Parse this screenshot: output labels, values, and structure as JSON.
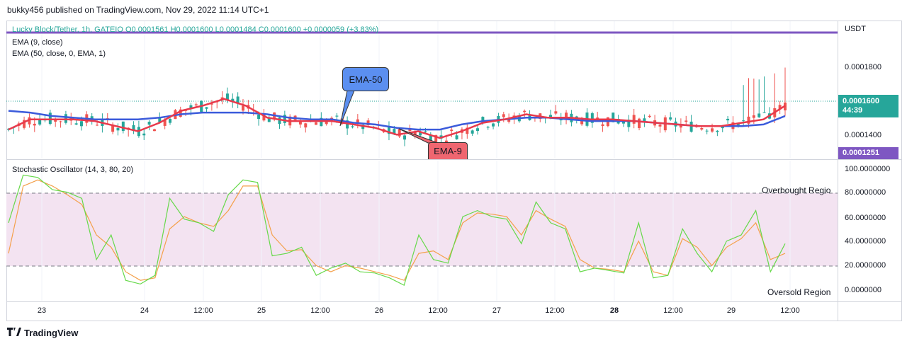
{
  "header": {
    "text": "bukky456 published on TradingView.com, Nov 29, 2022 11:14 UTC+1"
  },
  "legend": {
    "ohlc": "Lucky Block/Tether, 1h, GATEIO  O0.0001561  H0.0001600  L0.0001484  C0.0001600  +0.0000059 (+3.83%)",
    "ema9": "EMA (9, close)",
    "ema50": "EMA (50, close, 0, EMA, 1)",
    "stoch": "Stochastic Oscillator (14, 3, 80, 20)"
  },
  "price_axis": {
    "currency": "USDT",
    "labels": [
      "0.0001800",
      "0.0001400"
    ],
    "current_price": "0.0001600",
    "countdown": "44:39",
    "low_marker": "0.0001251"
  },
  "osc_axis": {
    "labels": [
      "100.0000000",
      "80.0000000",
      "60.0000000",
      "40.0000000",
      "20.0000000",
      "0.0000000"
    ]
  },
  "annotations": {
    "ema50": "EMA-50",
    "ema9": "EMA-9",
    "overbought": "Overbought Regio",
    "oversold": "Oversold Region"
  },
  "time_axis": [
    "23",
    "24",
    "12:00",
    "25",
    "12:00",
    "26",
    "12:00",
    "27",
    "12:00",
    "28",
    "12:00",
    "29",
    "12:00"
  ],
  "branding": {
    "name": "TradingView"
  },
  "colors": {
    "up": "#26a69a",
    "down": "#ef5350",
    "ema9": "#e8394b",
    "ema50": "#3b5bdb",
    "stochK": "#66d94a",
    "stochD": "#f4a04a",
    "band": "#f3e3f1",
    "hline": "#7e57c2"
  },
  "chart_data": [
    {
      "type": "candlestick",
      "title": "Lucky Block/Tether, 1h, GATEIO",
      "ylabel": "USDT",
      "ylim": [
        0.000123,
        0.000196
      ],
      "x_ticks": [
        "23",
        "24",
        "12:00",
        "25",
        "12:00",
        "26",
        "12:00",
        "27",
        "12:00",
        "28",
        "12:00",
        "29",
        "12:00"
      ],
      "y_ticks": [
        0.00018,
        0.00014
      ],
      "last_close": 0.00016,
      "horizontal_line": 0.000197,
      "series": [
        {
          "name": "EMA (9, close)",
          "values": [
            0.00014,
            0.000146,
            0.000146,
            0.000146,
            0.000145,
            0.000142,
            0.000139,
            0.000144,
            0.000151,
            0.000154,
            0.000158,
            0.000154,
            0.000147,
            0.000145,
            0.000145,
            0.000145,
            0.000143,
            0.000141,
            0.000137,
            0.000139,
            0.000135,
            0.000139,
            0.000144,
            0.000146,
            0.000149,
            0.000147,
            0.000147,
            0.000146,
            0.000146,
            0.000145,
            0.000144,
            0.000143,
            0.000142,
            0.000142,
            0.000144,
            0.000146,
            0.000154
          ]
        },
        {
          "name": "EMA (50, close, 0, EMA, 1)",
          "values": [
            0.000151,
            0.00015,
            0.000148,
            0.000147,
            0.000146,
            0.000146,
            0.000146,
            0.000147,
            0.000149,
            0.00015,
            0.00015,
            0.00015,
            0.000149,
            0.000147,
            0.000146,
            0.000146,
            0.000144,
            0.000143,
            0.000141,
            0.00014,
            0.00014,
            0.000143,
            0.000145,
            0.000146,
            0.000147,
            0.000147,
            0.000146,
            0.000145,
            0.000145,
            0.000145,
            0.000144,
            0.000143,
            0.000142,
            0.000142,
            0.000142,
            0.000143,
            0.000148
          ]
        }
      ]
    },
    {
      "type": "line",
      "title": "Stochastic Oscillator (14, 3, 80, 20)",
      "ylim": [
        0,
        100
      ],
      "y_ticks": [
        100,
        80,
        60,
        40,
        20,
        0
      ],
      "bands": {
        "upper": 80,
        "lower": 20
      },
      "series": [
        {
          "name": "%K",
          "values": [
            55,
            94,
            92,
            82,
            80,
            75,
            25,
            45,
            8,
            5,
            12,
            75,
            58,
            55,
            48,
            78,
            90,
            88,
            28,
            30,
            35,
            12,
            18,
            22,
            15,
            14,
            10,
            4,
            45,
            25,
            22,
            60,
            65,
            60,
            58,
            38,
            72,
            55,
            50,
            15,
            18,
            16,
            14,
            55,
            10,
            12,
            50,
            30,
            15,
            40,
            45,
            65,
            15,
            38
          ]
        },
        {
          "name": "%D",
          "values": [
            30,
            85,
            90,
            85,
            78,
            70,
            45,
            35,
            15,
            8,
            10,
            50,
            60,
            55,
            52,
            65,
            85,
            85,
            45,
            32,
            33,
            20,
            15,
            20,
            18,
            15,
            12,
            8,
            30,
            32,
            25,
            55,
            63,
            62,
            60,
            45,
            65,
            58,
            52,
            25,
            18,
            17,
            15,
            40,
            15,
            12,
            42,
            35,
            20,
            35,
            42,
            55,
            25,
            30
          ]
        }
      ]
    }
  ]
}
